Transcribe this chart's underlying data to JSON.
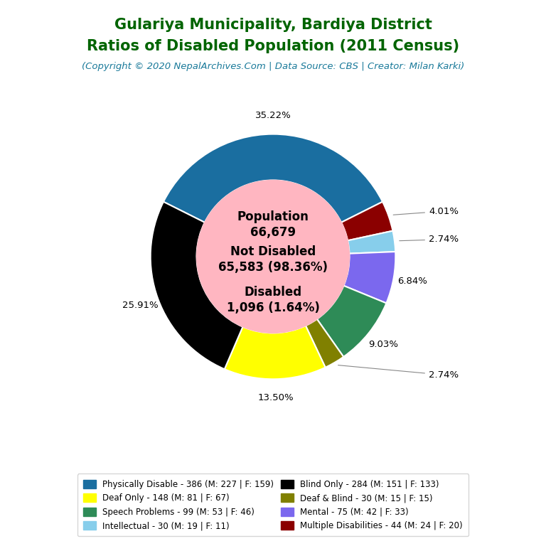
{
  "title_line1": "Gulariya Municipality, Bardiya District",
  "title_line2": "Ratios of Disabled Population (2011 Census)",
  "subtitle": "(Copyright © 2020 NepalArchives.Com | Data Source: CBS | Creator: Milan Karki)",
  "total_population": 66679,
  "not_disabled": 65583,
  "not_disabled_pct": 98.36,
  "disabled": 1096,
  "disabled_pct": 1.64,
  "title_color": "#006400",
  "subtitle_color": "#1a7a9a",
  "background_color": "#ffffff",
  "center_fill_color": "#ffb6c1",
  "slices": [
    {
      "label": "35.22%",
      "value": 386,
      "color": "#1a6ea0",
      "name": "Physically Disable"
    },
    {
      "label": "4.01%",
      "value": 44,
      "color": "#8b0000",
      "name": "Multiple Disabilities"
    },
    {
      "label": "2.74%",
      "value": 30,
      "color": "#87ceeb",
      "name": "Intellectual"
    },
    {
      "label": "6.84%",
      "value": 75,
      "color": "#7b68ee",
      "name": "Mental"
    },
    {
      "label": "9.03%",
      "value": 99,
      "color": "#2e8b57",
      "name": "Speech Problems"
    },
    {
      "label": "2.74%",
      "value": 30,
      "color": "#808000",
      "name": "Deaf & Blind"
    },
    {
      "label": "13.50%",
      "value": 148,
      "color": "#ffff00",
      "name": "Deaf Only"
    },
    {
      "label": "25.91%",
      "value": 284,
      "color": "#000000",
      "name": "Blind Only"
    }
  ],
  "legend_items": [
    {
      "label": "Physically Disable - 386 (M: 227 | F: 159)",
      "color": "#1a6ea0"
    },
    {
      "label": "Deaf Only - 148 (M: 81 | F: 67)",
      "color": "#ffff00"
    },
    {
      "label": "Speech Problems - 99 (M: 53 | F: 46)",
      "color": "#2e8b57"
    },
    {
      "label": "Intellectual - 30 (M: 19 | F: 11)",
      "color": "#87ceeb"
    },
    {
      "label": "Blind Only - 284 (M: 151 | F: 133)",
      "color": "#000000"
    },
    {
      "label": "Deaf & Blind - 30 (M: 15 | F: 15)",
      "color": "#808000"
    },
    {
      "label": "Mental - 75 (M: 42 | F: 33)",
      "color": "#7b68ee"
    },
    {
      "label": "Multiple Disabilities - 44 (M: 24 | F: 20)",
      "color": "#8b0000"
    }
  ],
  "small_label_threshold": 5.0
}
